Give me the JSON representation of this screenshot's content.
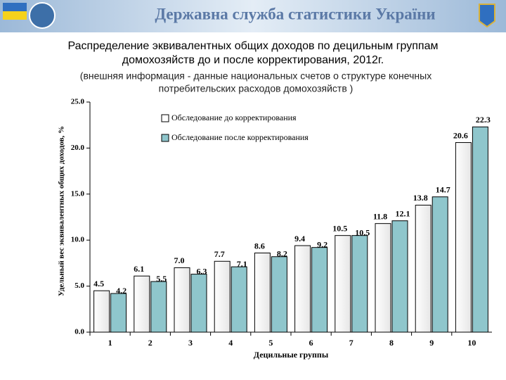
{
  "header": "Державна служба статистики України",
  "chart_data": {
    "type": "bar",
    "title": [
      "Распределение эквивалентных общих доходов по децильным группам",
      "домохозяйств до и после корректирования, 2012г."
    ],
    "subtitle": [
      "(внешняя информация - данные национальных счетов о структуре конечных",
      "потребительских расходов домохозяйств )"
    ],
    "ylabel": "Удельный вес эквивалентных общих доходов, %",
    "xlabel": "Децильные группы",
    "categories": [
      "1",
      "2",
      "3",
      "4",
      "5",
      "6",
      "7",
      "8",
      "9",
      "10"
    ],
    "series": [
      {
        "name": "Обследование до корректирования",
        "color": "#ffffff",
        "values": [
          4.5,
          6.1,
          7.0,
          7.7,
          8.6,
          9.4,
          10.5,
          11.8,
          13.8,
          20.6
        ],
        "value_labels": [
          "4.5",
          "6.1",
          "7.0",
          "7.7",
          "8.6",
          "9.4",
          "10.5",
          "11.8",
          "13.8",
          "20.6"
        ]
      },
      {
        "name": "Обследование после корректирования",
        "color": "#8fc6cc",
        "values": [
          4.2,
          5.5,
          6.3,
          7.1,
          8.2,
          9.2,
          10.5,
          12.1,
          14.7,
          22.3
        ],
        "value_labels": [
          "4.2",
          "5.5",
          "6.3",
          "7.1",
          "8.2",
          "9.2",
          "10.5",
          "12.1",
          "14.7",
          "22.3"
        ]
      }
    ],
    "ylim": [
      0,
      25
    ],
    "yticks": [
      {
        "value": 0,
        "label": "0.0"
      },
      {
        "value": 5,
        "label": "5.0"
      },
      {
        "value": 10,
        "label": "10.0"
      },
      {
        "value": 15,
        "label": "15.0"
      },
      {
        "value": 20,
        "label": "20.0"
      },
      {
        "value": 25,
        "label": "25.0"
      }
    ],
    "grid": false,
    "legend": "top-left"
  }
}
